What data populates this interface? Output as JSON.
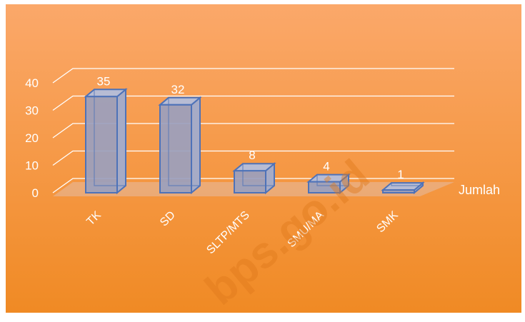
{
  "chart_data": {
    "type": "bar",
    "categories": [
      "TK",
      "SD",
      "SLTP/MTS",
      "SMU/MA",
      "SMK"
    ],
    "series": [
      {
        "name": "Jumlah",
        "values": [
          35,
          32,
          8,
          4,
          1
        ]
      }
    ],
    "data_labels": [
      "35",
      "32",
      "8",
      "4",
      "1"
    ],
    "y_ticks": [
      "0",
      "10",
      "20",
      "30",
      "40"
    ],
    "ylim": [
      0,
      40
    ],
    "legend": "right",
    "grid": true,
    "style": "3d-clustered-column",
    "colors": {
      "background_top": "#FBA86A",
      "background_bottom": "#F08A24",
      "bar_front": "#9A9FBE",
      "bar_side": "#A6ABC6",
      "bar_top": "#B7BCD4",
      "bar_stroke": "#4E72B8",
      "gridline": "#FFFFFF",
      "floor": "#E8B18A",
      "text": "#FFFFFF"
    }
  },
  "watermark": "bps.go.id"
}
